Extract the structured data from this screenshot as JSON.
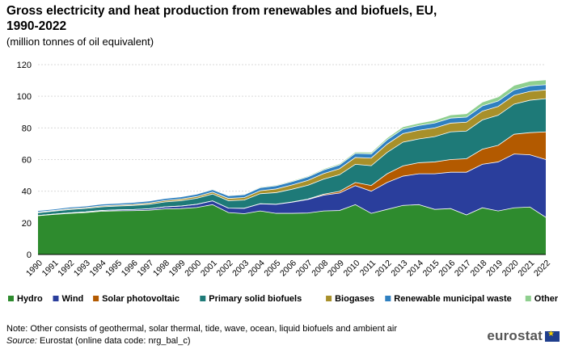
{
  "header": {
    "title": "Gross electricity and heat production from renewables and biofuels, EU, 1990-2022",
    "subtitle": "(million tonnes of oil equivalent)"
  },
  "footer": {
    "note": "Note: Other consists of geothermal, solar thermal, tide, wave, ocean, liquid biofuels and ambient air",
    "source_label": "Source:",
    "source_text": " Eurostat (online data code: nrg_bal_c)",
    "logo": "eurostat"
  },
  "chart_data": {
    "type": "area",
    "stacked": true,
    "x": [
      "1990",
      "1991",
      "1992",
      "1993",
      "1994",
      "1995",
      "1996",
      "1997",
      "1998",
      "1999",
      "2000",
      "2001",
      "2002",
      "2003",
      "2004",
      "2005",
      "2006",
      "2007",
      "2008",
      "2009",
      "2010",
      "2011",
      "2012",
      "2013",
      "2014",
      "2015",
      "2016",
      "2017",
      "2018",
      "2019",
      "2020",
      "2021",
      "2022"
    ],
    "ylim": [
      0,
      120
    ],
    "yticks": [
      0,
      20,
      40,
      60,
      80,
      100,
      120
    ],
    "grid": true,
    "legend_position": "bottom",
    "series": [
      {
        "name": "Hydro",
        "color": "#2e8b2e",
        "values": [
          24.5,
          25.3,
          26.0,
          26.5,
          27.3,
          27.6,
          27.7,
          28.0,
          28.8,
          29.0,
          29.7,
          31.5,
          26.5,
          25.8,
          27.5,
          26.0,
          26.0,
          26.2,
          27.5,
          27.8,
          31.5,
          26.0,
          28.5,
          31.0,
          31.5,
          28.5,
          29.0,
          25.0,
          29.5,
          27.5,
          29.5,
          30.0,
          23.5
        ]
      },
      {
        "name": "Wind",
        "color": "#2a3e9c",
        "values": [
          0.1,
          0.2,
          0.3,
          0.4,
          0.5,
          0.6,
          0.7,
          0.9,
          1.3,
          1.6,
          2.0,
          2.4,
          2.8,
          3.4,
          4.5,
          5.7,
          7.0,
          8.5,
          10.0,
          11.0,
          12.0,
          14.0,
          17.0,
          18.5,
          19.5,
          22.5,
          23.0,
          27.0,
          27.5,
          31.0,
          34.0,
          33.0,
          36.5
        ]
      },
      {
        "name": "Solar photovoltaic",
        "color": "#b35a00",
        "values": [
          0,
          0,
          0,
          0,
          0,
          0,
          0,
          0,
          0,
          0,
          0,
          0,
          0,
          0,
          0.1,
          0.1,
          0.2,
          0.3,
          0.6,
          1.1,
          2.0,
          3.6,
          5.5,
          6.5,
          7.0,
          7.5,
          8.0,
          8.5,
          9.5,
          10.5,
          12.5,
          14.0,
          17.5
        ]
      },
      {
        "name": "Primary solid biofuels",
        "color": "#1e7a78",
        "values": [
          1.8,
          1.9,
          2.1,
          2.2,
          2.3,
          2.4,
          2.6,
          2.8,
          3.1,
          3.4,
          3.8,
          4.3,
          4.7,
          5.2,
          6.3,
          7.3,
          8.0,
          8.7,
          9.5,
          10.5,
          11.5,
          12.5,
          13.5,
          15.0,
          15.0,
          16.0,
          17.5,
          17.5,
          18.5,
          19.0,
          19.0,
          20.5,
          21.0
        ]
      },
      {
        "name": "Biogases",
        "color": "#a8902a",
        "values": [
          0.4,
          0.4,
          0.5,
          0.5,
          0.6,
          0.6,
          0.7,
          0.8,
          0.9,
          1.0,
          1.1,
          1.2,
          1.4,
          1.6,
          1.9,
          2.3,
          2.7,
          3.1,
          3.5,
          3.8,
          4.3,
          4.8,
          5.2,
          5.4,
          5.5,
          5.5,
          5.5,
          5.6,
          5.6,
          5.6,
          5.6,
          5.6,
          5.5
        ]
      },
      {
        "name": "Renewable municipal waste",
        "color": "#2f80c0",
        "values": [
          0.9,
          0.9,
          1.0,
          1.0,
          1.1,
          1.1,
          1.2,
          1.3,
          1.3,
          1.4,
          1.5,
          1.6,
          1.7,
          1.8,
          1.9,
          2.0,
          2.1,
          2.2,
          2.3,
          2.4,
          2.6,
          2.7,
          2.8,
          2.9,
          3.0,
          3.1,
          3.2,
          3.2,
          3.3,
          3.4,
          3.4,
          3.5,
          3.3
        ]
      },
      {
        "name": "Other",
        "color": "#8fcf8f",
        "values": [
          0.2,
          0.2,
          0.2,
          0.2,
          0.2,
          0.2,
          0.3,
          0.3,
          0.3,
          0.3,
          0.3,
          0.4,
          0.4,
          0.4,
          0.5,
          0.5,
          0.6,
          0.6,
          0.7,
          0.8,
          0.9,
          1.0,
          1.2,
          1.4,
          1.5,
          1.8,
          2.0,
          2.2,
          2.4,
          2.6,
          2.9,
          3.0,
          3.1
        ]
      }
    ]
  }
}
